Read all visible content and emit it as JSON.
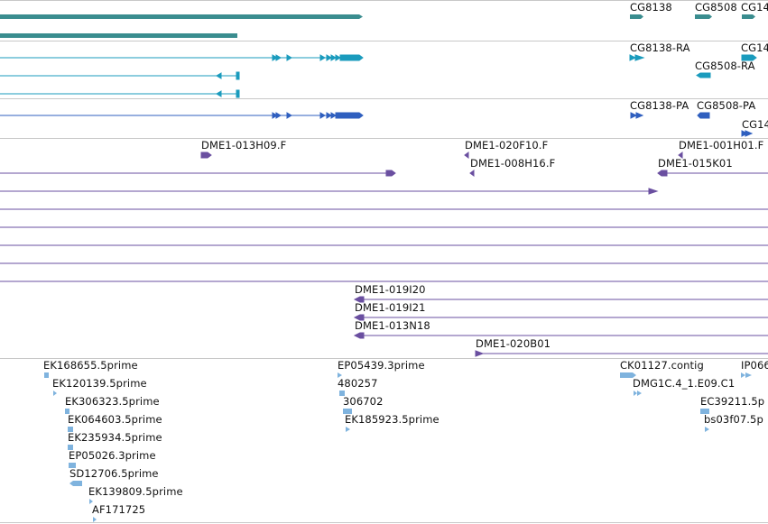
{
  "colors": {
    "gene": "#3a8d8f",
    "mrna": "#1a9bbd",
    "protein": "#2f5fbf",
    "bac": "#6a4fa0",
    "est": "#7fb3de",
    "divider": "#c8c8c8"
  },
  "tracks": {
    "gene": {
      "labels": [
        "CG8138",
        "CG8508",
        "CG14"
      ]
    },
    "mrna": {
      "labels": [
        "CG8138-RA",
        "CG14",
        "CG8508-RA"
      ]
    },
    "protein": {
      "labels": [
        "CG8138-PA",
        "CG8508-PA",
        "CG14"
      ]
    },
    "bac_ends": {
      "labels": [
        "DME1-013H09.F",
        "DME1-020F10.F",
        "DME1-001H01.F",
        "DME1-008H16.F",
        "DME1-015K01"
      ]
    },
    "bac_clones": {
      "labels": [
        "DME1-019I20",
        "DME1-019I21",
        "DME1-013N18",
        "DME1-020B01"
      ]
    },
    "est": {
      "labels": [
        "EK168655.5prime",
        "EK120139.5prime",
        "EK306323.5prime",
        "EK064603.5prime",
        "EK235934.5prime",
        "EP05026.3prime",
        "SD12706.5prime",
        "EK139809.5prime",
        "AF171725",
        "EP05439.3prime",
        "480257",
        "306702",
        "EK185923.5prime",
        "CK01127.contig",
        "IP066",
        "DMG1C.4_1.E09.C1",
        "EC39211.5p",
        "bs03f07.5p"
      ]
    }
  }
}
